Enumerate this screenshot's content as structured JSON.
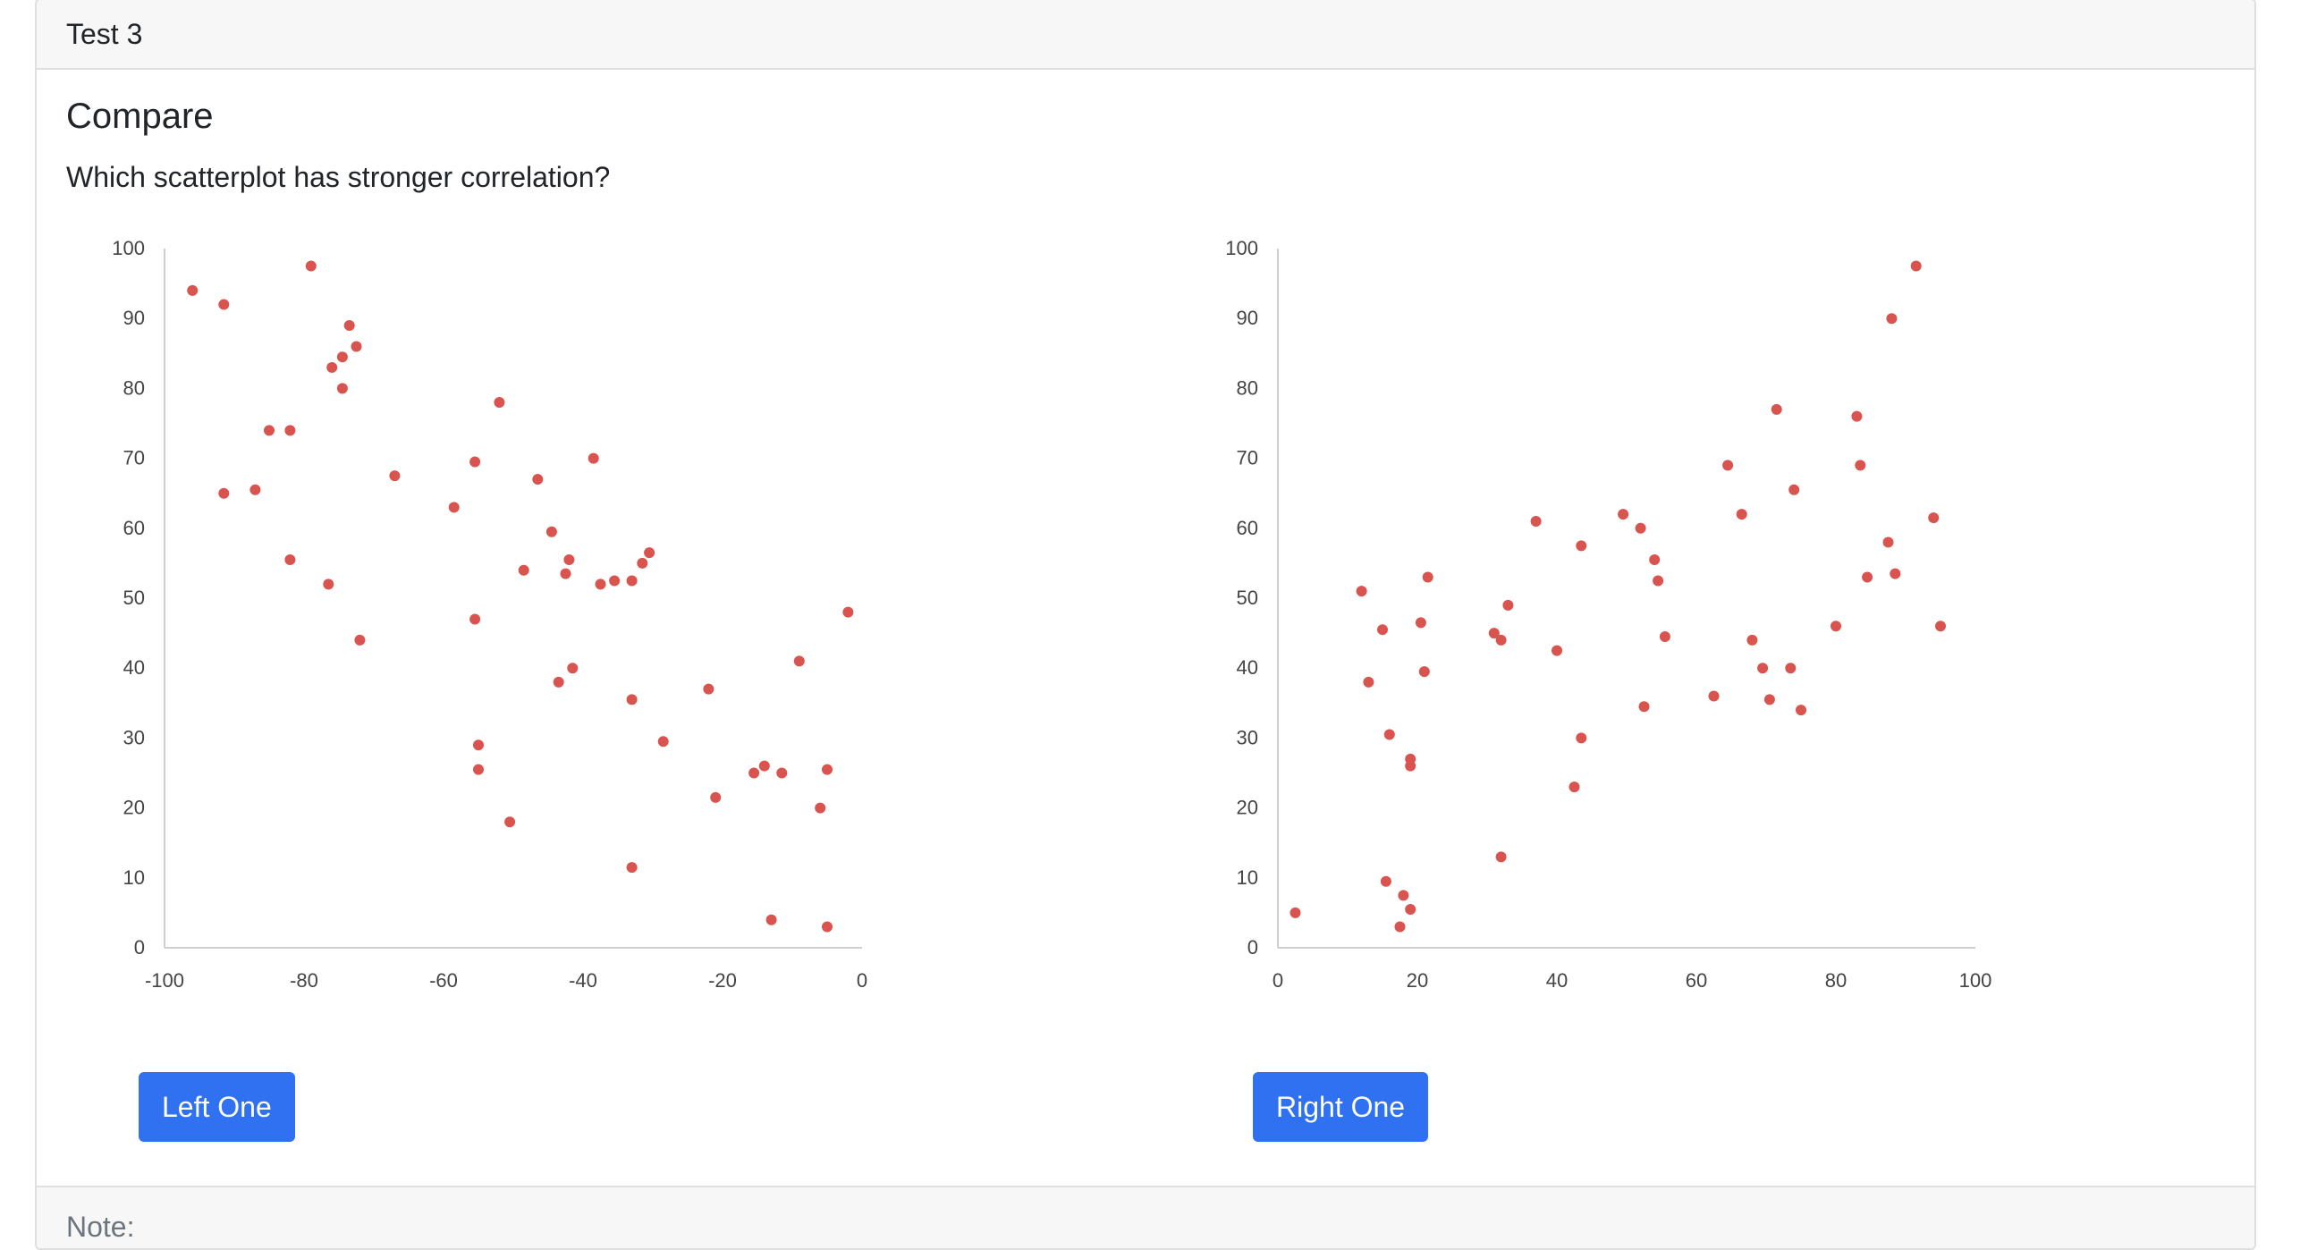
{
  "header": {
    "title": "Test 3"
  },
  "question": {
    "title": "Compare",
    "prompt": "Which scatterplot has stronger correlation?"
  },
  "buttons": {
    "left": "Left One",
    "right": "Right One"
  },
  "footer": {
    "note_label": "Note:"
  },
  "colors": {
    "point": "#d9534f",
    "button": "#2f71f0"
  },
  "chart_data": [
    {
      "type": "scatter",
      "title": "",
      "xlabel": "",
      "ylabel": "",
      "xlim": [
        -100,
        0
      ],
      "ylim": [
        0,
        100
      ],
      "xticks": [
        -100,
        -80,
        -60,
        -40,
        -20,
        0
      ],
      "yticks": [
        0,
        10,
        20,
        30,
        40,
        50,
        60,
        70,
        80,
        90,
        100
      ],
      "grid": false,
      "points": [
        [
          -96,
          94
        ],
        [
          -91.5,
          92
        ],
        [
          -79,
          97.5
        ],
        [
          -73.5,
          89
        ],
        [
          -72.5,
          86
        ],
        [
          -74.5,
          84.5
        ],
        [
          -76,
          83
        ],
        [
          -74.5,
          80
        ],
        [
          -52,
          78
        ],
        [
          -85,
          74
        ],
        [
          -82,
          74
        ],
        [
          -38.5,
          70
        ],
        [
          -55.5,
          69.5
        ],
        [
          -67,
          67.5
        ],
        [
          -46.5,
          67
        ],
        [
          -87,
          65.5
        ],
        [
          -91.5,
          65
        ],
        [
          -58.5,
          63
        ],
        [
          -44.5,
          59.5
        ],
        [
          -30.5,
          56.5
        ],
        [
          -82,
          55.5
        ],
        [
          -42,
          55.5
        ],
        [
          -31.5,
          55
        ],
        [
          -48.5,
          54
        ],
        [
          -42.5,
          53.5
        ],
        [
          -35.5,
          52.5
        ],
        [
          -33,
          52.5
        ],
        [
          -37.5,
          52
        ],
        [
          -76.5,
          52
        ],
        [
          -2,
          48
        ],
        [
          -55.5,
          47
        ],
        [
          -72,
          44
        ],
        [
          -9,
          41
        ],
        [
          -41.5,
          40
        ],
        [
          -43.5,
          38
        ],
        [
          -22,
          37
        ],
        [
          -33,
          35.5
        ],
        [
          -28.5,
          29.5
        ],
        [
          -55,
          29
        ],
        [
          -55,
          25.5
        ],
        [
          -14,
          26
        ],
        [
          -15.5,
          25
        ],
        [
          -11.5,
          25
        ],
        [
          -5,
          25.5
        ],
        [
          -21,
          21.5
        ],
        [
          -6,
          20
        ],
        [
          -50.5,
          18
        ],
        [
          -33,
          11.5
        ],
        [
          -13,
          4
        ],
        [
          -5,
          3
        ]
      ]
    },
    {
      "type": "scatter",
      "title": "",
      "xlabel": "",
      "ylabel": "",
      "xlim": [
        0,
        100
      ],
      "ylim": [
        0,
        100
      ],
      "xticks": [
        0,
        20,
        40,
        60,
        80,
        100
      ],
      "yticks": [
        0,
        10,
        20,
        30,
        40,
        50,
        60,
        70,
        80,
        90,
        100
      ],
      "grid": false,
      "points": [
        [
          91.5,
          97.5
        ],
        [
          88,
          90
        ],
        [
          71.5,
          77
        ],
        [
          83,
          76
        ],
        [
          64.5,
          69
        ],
        [
          83.5,
          69
        ],
        [
          74,
          65.5
        ],
        [
          49.5,
          62
        ],
        [
          66.5,
          62
        ],
        [
          94,
          61.5
        ],
        [
          37,
          61
        ],
        [
          52,
          60
        ],
        [
          87.5,
          58
        ],
        [
          43.5,
          57.5
        ],
        [
          54,
          55.5
        ],
        [
          21.5,
          53
        ],
        [
          88.5,
          53.5
        ],
        [
          84.5,
          53
        ],
        [
          54.5,
          52.5
        ],
        [
          12,
          51
        ],
        [
          33,
          49
        ],
        [
          20.5,
          46.5
        ],
        [
          80,
          46
        ],
        [
          15,
          45.5
        ],
        [
          95,
          46
        ],
        [
          31,
          45
        ],
        [
          32,
          44
        ],
        [
          55.5,
          44.5
        ],
        [
          68,
          44
        ],
        [
          40,
          42.5
        ],
        [
          21,
          39.5
        ],
        [
          69.5,
          40
        ],
        [
          73.5,
          40
        ],
        [
          13,
          38
        ],
        [
          62.5,
          36
        ],
        [
          70.5,
          35.5
        ],
        [
          52.5,
          34.5
        ],
        [
          75,
          34
        ],
        [
          16,
          30.5
        ],
        [
          43.5,
          30
        ],
        [
          19,
          27
        ],
        [
          19,
          26
        ],
        [
          42.5,
          23
        ],
        [
          32,
          13
        ],
        [
          15.5,
          9.5
        ],
        [
          18,
          7.5
        ],
        [
          19,
          5.5
        ],
        [
          2.5,
          5
        ],
        [
          17.5,
          3
        ]
      ]
    }
  ]
}
